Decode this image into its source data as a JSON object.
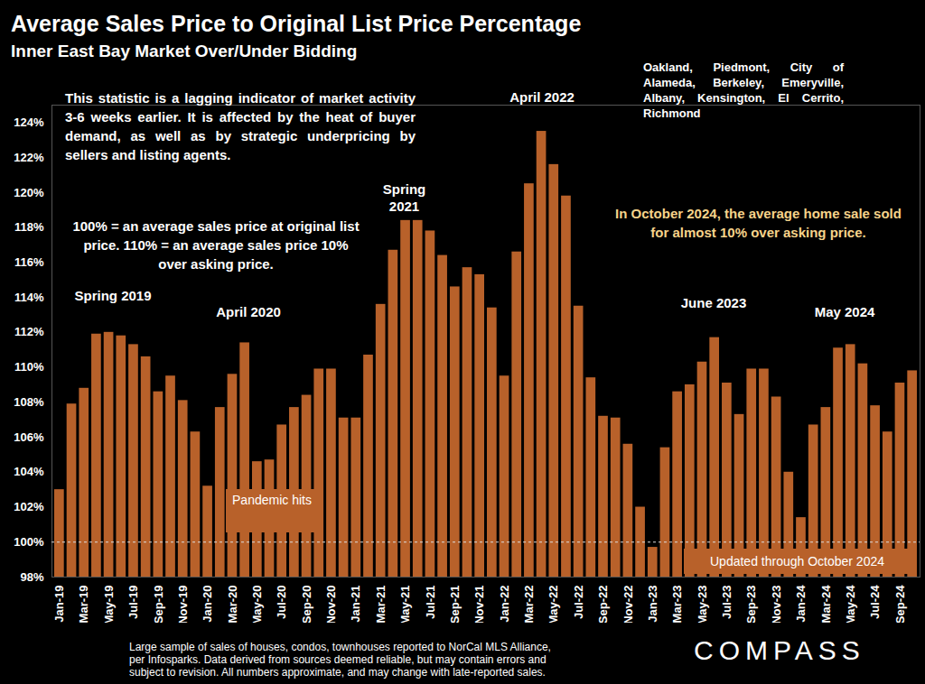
{
  "chart_data": {
    "type": "bar",
    "title": "Average Sales Price to Original List Price Percentage",
    "subtitle": "Inner East Bay Market Over/Under Bidding",
    "locations": "Oakland, Piedmont, City of Alameda, Berkeley, Emeryville, Albany, Kensington, El Cerrito, Richmond",
    "notes": [
      "This statistic is a lagging indicator of market activity 3-6 weeks earlier. It is affected by the heat of buyer demand, as well as by strategic underpricing by sellers and listing agents.",
      "100% = an average sales price at original list price. 110% = an average sales price 10% over asking price."
    ],
    "highlight": "In October 2024, the average home sale sold for almost 10% over asking price.",
    "annotations": [
      "Spring 2019",
      "April 2020",
      "Spring 2021",
      "April 2022",
      "June 2023",
      "May 2024",
      "Pandemic hits",
      "Updated through October 2024"
    ],
    "source": "Large sample of sales of houses, condos, townhouses reported to NorCal MLS Alliance, per Infosparks. Data derived from sources deemed reliable, but may contain errors and subject to revision. All numbers approximate, and may change with late-reported sales.",
    "logo": "COMPASS",
    "categories": [
      "Jan-19",
      null,
      "Mar-19",
      null,
      "May-19",
      null,
      "Jul-19",
      null,
      "Sep-19",
      null,
      "Nov-19",
      null,
      "Jan-20",
      null,
      "Mar-20",
      null,
      "May-20",
      null,
      "Jul-20",
      null,
      "Sep-20",
      null,
      "Nov-20",
      null,
      "Jan-21",
      null,
      "Mar-21",
      null,
      "May-21",
      null,
      "Jul-21",
      null,
      "Sep-21",
      null,
      "Nov-21",
      null,
      "Jan-22",
      null,
      "Mar-22",
      null,
      "May-22",
      null,
      "Jul-22",
      null,
      "Sep-22",
      null,
      "Nov-22",
      null,
      "Jan-23",
      null,
      "Mar-23",
      null,
      "May-23",
      null,
      "Jul-23",
      null,
      "Sep-23",
      null,
      "Nov-23",
      null,
      "Jan-24",
      null,
      "Mar-24",
      null,
      "May-24",
      null,
      "Jul-24",
      null,
      "Sep-24",
      null
    ],
    "values": [
      103.0,
      107.9,
      108.8,
      111.9,
      112.0,
      111.8,
      111.3,
      110.6,
      108.6,
      109.5,
      108.1,
      106.3,
      103.2,
      107.7,
      109.6,
      111.4,
      104.6,
      104.7,
      106.7,
      107.7,
      108.4,
      109.9,
      109.9,
      107.1,
      107.1,
      110.7,
      113.6,
      116.7,
      118.4,
      118.4,
      117.8,
      116.4,
      114.6,
      115.7,
      115.3,
      113.4,
      109.5,
      116.6,
      120.5,
      123.5,
      121.6,
      119.8,
      113.5,
      109.4,
      107.2,
      107.1,
      105.6,
      102.0,
      99.7,
      105.4,
      108.6,
      109.0,
      110.3,
      111.7,
      109.1,
      107.3,
      109.9,
      109.9,
      108.3,
      104.0,
      101.4,
      106.7,
      107.7,
      111.1,
      111.3,
      110.2,
      107.8,
      106.3,
      109.1,
      109.8
    ],
    "color": "#b8612a",
    "reference_line": 100,
    "ylim": [
      98,
      125
    ],
    "yticks": [
      {
        "value": 98,
        "label": "98%"
      },
      {
        "value": 100,
        "label": "100%"
      },
      {
        "value": 102,
        "label": "102%"
      },
      {
        "value": 104,
        "label": "104%"
      },
      {
        "value": 106,
        "label": "106%"
      },
      {
        "value": 108,
        "label": "108%"
      },
      {
        "value": 110,
        "label": "110%"
      },
      {
        "value": 112,
        "label": "112%"
      },
      {
        "value": 114,
        "label": "114%"
      },
      {
        "value": 116,
        "label": "116%"
      },
      {
        "value": 118,
        "label": "118%"
      },
      {
        "value": 120,
        "label": "120%"
      },
      {
        "value": 122,
        "label": "122%"
      },
      {
        "value": 124,
        "label": "124%"
      }
    ],
    "grid": false
  }
}
